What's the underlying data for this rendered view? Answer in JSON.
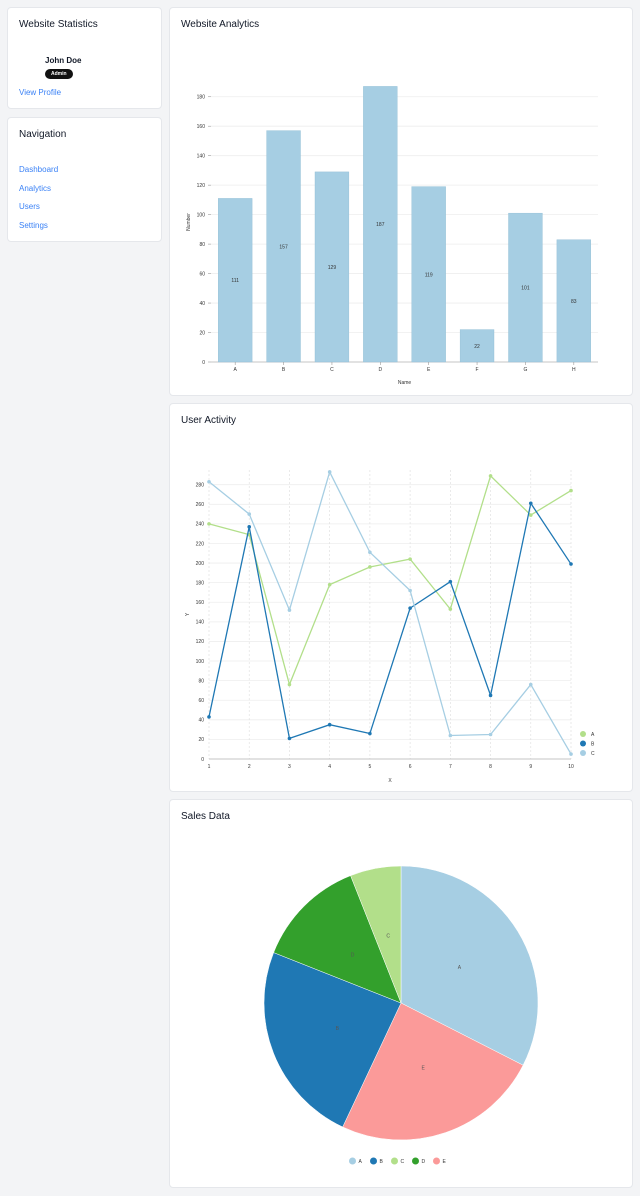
{
  "profile": {
    "title": "Website Statistics",
    "username": "John Doe",
    "role_badge": "Admin",
    "view_profile_link": "View Profile"
  },
  "navigation": {
    "title": "Navigation",
    "items": [
      {
        "label": "Dashboard"
      },
      {
        "label": "Analytics"
      },
      {
        "label": "Users"
      },
      {
        "label": "Settings"
      }
    ]
  },
  "analytics_card": {
    "title": "Website Analytics"
  },
  "activity_card": {
    "title": "User Activity"
  },
  "sales_card": {
    "title": "Sales Data"
  },
  "colors": {
    "light_blue": "#a6cee3",
    "dark_blue": "#1f78b4",
    "light_green": "#b2df8a",
    "green": "#33a02c",
    "pink": "#fb9a99",
    "link": "#3b82f6"
  },
  "chart_data": [
    {
      "type": "bar",
      "categories": [
        "A",
        "B",
        "C",
        "D",
        "E",
        "F",
        "G",
        "H"
      ],
      "values": [
        111,
        157,
        129,
        187,
        119,
        22,
        101,
        83
      ],
      "xlabel": "Name",
      "ylabel": "Number",
      "ylim": [
        0,
        190
      ],
      "yticks": [
        0,
        20,
        40,
        60,
        80,
        100,
        120,
        140,
        160,
        180
      ],
      "data_labels": true,
      "grid": "horizontal",
      "color": "#a6cee3"
    },
    {
      "type": "line",
      "x": [
        1,
        2,
        3,
        4,
        5,
        6,
        7,
        8,
        9,
        10
      ],
      "series": [
        {
          "name": "A",
          "color": "#b2df8a",
          "values": [
            240,
            229,
            76,
            178,
            196,
            204,
            153,
            289,
            249,
            274
          ]
        },
        {
          "name": "B",
          "color": "#1f78b4",
          "values": [
            43,
            237,
            21,
            35,
            26,
            154,
            181,
            65,
            261,
            199
          ]
        },
        {
          "name": "C",
          "color": "#a6cee3",
          "values": [
            283,
            250,
            152,
            293,
            211,
            172,
            24,
            25,
            76,
            5
          ]
        }
      ],
      "xlabel": "X",
      "ylabel": "Y",
      "ylim": [
        0,
        295
      ],
      "yticks": [
        0,
        20,
        40,
        60,
        80,
        100,
        120,
        140,
        160,
        180,
        200,
        220,
        240,
        260,
        280
      ],
      "xticks": [
        1,
        2,
        3,
        4,
        5,
        6,
        7,
        8,
        9,
        10
      ],
      "grid": true,
      "legend": "bottom-right"
    },
    {
      "type": "pie",
      "labels": [
        "A",
        "E",
        "B",
        "D",
        "C"
      ],
      "values": [
        32.5,
        24.5,
        24.0,
        13.0,
        6.0
      ],
      "colors": [
        "#a6cee3",
        "#fb9a99",
        "#1f78b4",
        "#33a02c",
        "#b2df8a"
      ],
      "legend": "bottom",
      "legend_order": [
        "A",
        "B",
        "C",
        "D",
        "E"
      ]
    }
  ]
}
